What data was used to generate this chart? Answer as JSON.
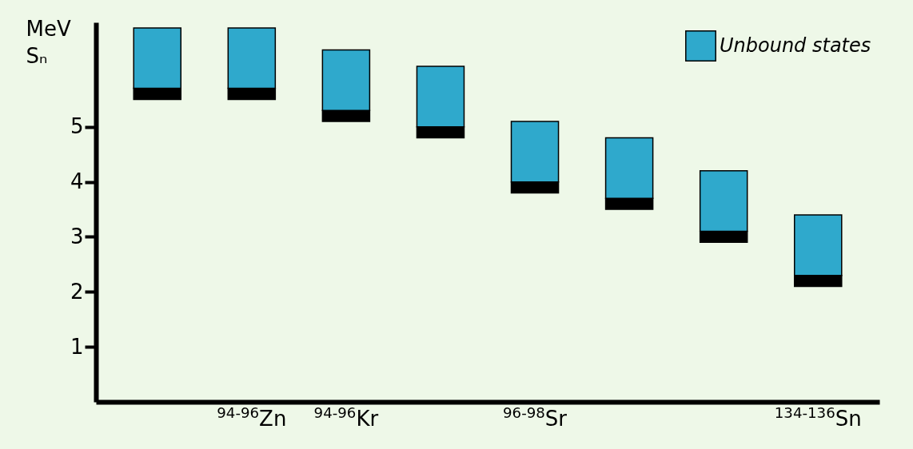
{
  "chart_data": {
    "type": "bar",
    "ylabel": "Sₙ",
    "annotations": [
      "MeV"
    ],
    "categories": [
      null,
      "$^{94-96}$Zn",
      "$^{94-96}$Kr",
      null,
      "$^{96-98}$Sr",
      null,
      null,
      "$^{134-136}$Sn"
    ],
    "series": [
      {
        "color": "#000000",
        "base": [
          5.5,
          5.5,
          5.1,
          4.8,
          3.8,
          3.5,
          2.9,
          2.1
        ],
        "values": [
          0.2,
          0.2,
          0.2,
          0.2,
          0.2,
          0.2,
          0.2,
          0.2
        ]
      },
      {
        "name": "Unbound states",
        "color": "#2fa9cc",
        "base": [
          5.7,
          5.7,
          5.3,
          5.0,
          4.0,
          3.7,
          3.1,
          2.3
        ],
        "values": [
          1.1,
          1.1,
          1.1,
          1.1,
          1.1,
          1.1,
          1.1,
          1.1
        ]
      }
    ],
    "ylim": [
      0,
      6.9
    ],
    "yticks": [
      1,
      2,
      3,
      4,
      5
    ],
    "grid": false,
    "legend": "top right"
  }
}
